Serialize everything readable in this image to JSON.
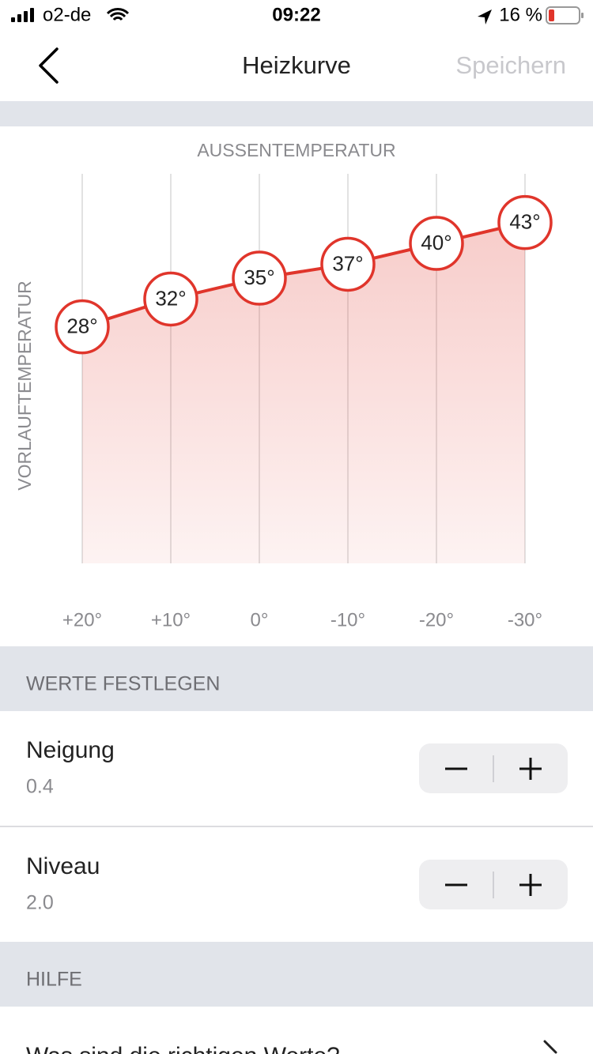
{
  "status_bar": {
    "carrier": "o2-de",
    "time": "09:22",
    "battery": "16 %"
  },
  "nav": {
    "title": "Heizkurve",
    "save": "Speichern"
  },
  "chart_data": {
    "type": "line",
    "title": "AUSSENTEMPERATUR",
    "y_label": "VORLAUFTEMPERATUR",
    "categories": [
      "+20°",
      "+10°",
      "0°",
      "-10°",
      "-20°",
      "-30°"
    ],
    "values": [
      28,
      32,
      35,
      37,
      40,
      43
    ],
    "value_labels": [
      "28°",
      "32°",
      "35°",
      "37°",
      "40°",
      "43°"
    ],
    "ylim": [
      -6,
      50
    ],
    "color": "#e0352b"
  },
  "settings": {
    "title": "WERTE FESTLEGEN",
    "items": [
      {
        "label": "Neigung",
        "value": "0.4"
      },
      {
        "label": "Niveau",
        "value": "2.0"
      }
    ]
  },
  "help": {
    "title": "HILFE",
    "items": [
      "Was sind die richtigen Werte?"
    ]
  }
}
